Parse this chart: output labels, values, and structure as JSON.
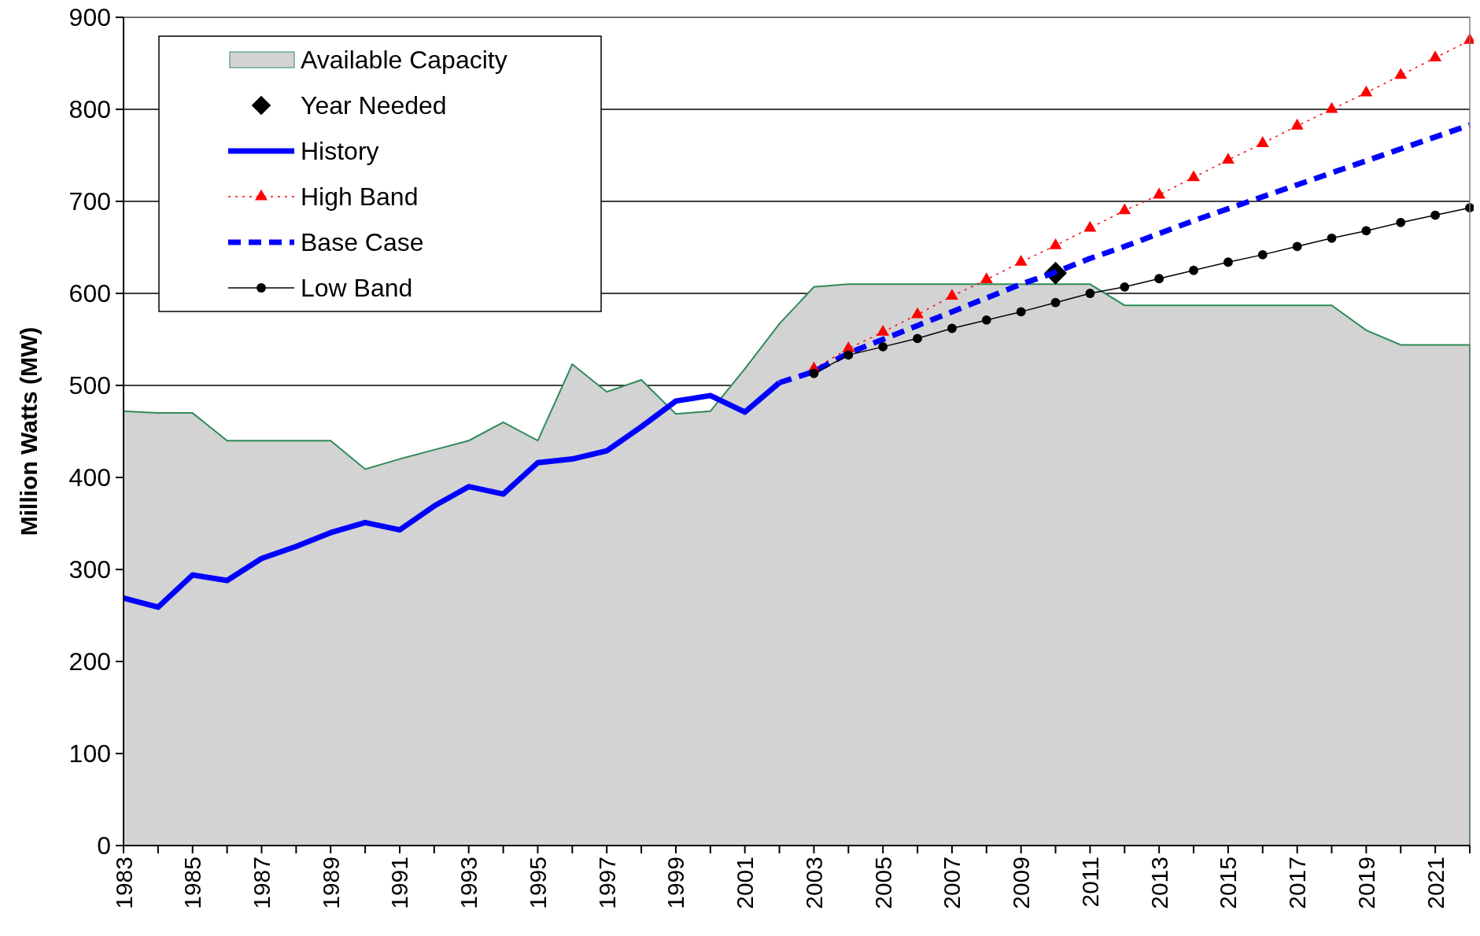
{
  "chart_data": {
    "type": "line",
    "ylabel": "Million Watts (MW)",
    "xlim": [
      1983,
      2022
    ],
    "ylim": [
      0,
      900
    ],
    "xticks": [
      1983,
      1985,
      1987,
      1989,
      1991,
      1993,
      1995,
      1997,
      1999,
      2001,
      2003,
      2005,
      2007,
      2009,
      2011,
      2013,
      2015,
      2017,
      2019,
      2021
    ],
    "yticks": [
      0,
      100,
      200,
      300,
      400,
      500,
      600,
      700,
      800,
      900
    ],
    "grid": "y",
    "legend": "top left",
    "series": [
      {
        "name": "Available Capacity",
        "type": "area",
        "color": "#d3d3d3",
        "x": [
          1983,
          1984,
          1985,
          1986,
          1987,
          1988,
          1989,
          1990,
          1991,
          1992,
          1993,
          1994,
          1995,
          1996,
          1997,
          1998,
          1999,
          2000,
          2001,
          2002,
          2003,
          2004,
          2005,
          2006,
          2007,
          2008,
          2009,
          2010,
          2011,
          2012,
          2013,
          2014,
          2015,
          2016,
          2017,
          2018,
          2019,
          2020,
          2021,
          2022
        ],
        "values": [
          472,
          470,
          470,
          440,
          440,
          440,
          440,
          409,
          420,
          430,
          440,
          460,
          440,
          523,
          493,
          506,
          469,
          472,
          518,
          567,
          607,
          610,
          610,
          610,
          610,
          610,
          610,
          610,
          610,
          587,
          587,
          587,
          587,
          587,
          587,
          587,
          560,
          544,
          544,
          544
        ]
      },
      {
        "name": "Year Needed",
        "type": "scatter",
        "color": "#000000",
        "marker": "diamond",
        "x": [
          2010
        ],
        "values": [
          622
        ]
      },
      {
        "name": "History",
        "color": "#0000ff",
        "line_style": "solid",
        "marker": "none",
        "x": [
          1983,
          1984,
          1985,
          1986,
          1987,
          1988,
          1989,
          1990,
          1991,
          1992,
          1993,
          1994,
          1995,
          1996,
          1997,
          1998,
          1999,
          2000,
          2001,
          2002
        ],
        "values": [
          269,
          259,
          294,
          288,
          312,
          325,
          340,
          351,
          343,
          369,
          390,
          382,
          416,
          420,
          429,
          455,
          483,
          489,
          471,
          503
        ]
      },
      {
        "name": "High Band",
        "color": "#ff0000",
        "line_style": "dotted",
        "marker": "triangle",
        "x": [
          2003,
          2004,
          2005,
          2006,
          2007,
          2008,
          2009,
          2010,
          2011,
          2012,
          2013,
          2014,
          2015,
          2016,
          2017,
          2018,
          2019,
          2020,
          2021,
          2022
        ],
        "values": [
          518,
          540,
          558,
          577,
          597,
          615,
          634,
          652,
          671,
          690,
          707,
          726,
          745,
          763,
          782,
          800,
          818,
          837,
          856,
          875
        ]
      },
      {
        "name": "Base Case",
        "color": "#0000ff",
        "line_style": "dashed",
        "marker": "none",
        "x": [
          2002,
          2003,
          2004,
          2005,
          2006,
          2007,
          2008,
          2009,
          2010,
          2011,
          2012,
          2013,
          2014,
          2015,
          2016,
          2017,
          2018,
          2019,
          2020,
          2021,
          2022
        ],
        "values": [
          503,
          515,
          535,
          550,
          565,
          580,
          595,
          610,
          623,
          638,
          651,
          665,
          679,
          692,
          705,
          718,
          731,
          744,
          757,
          770,
          783
        ]
      },
      {
        "name": "Low Band",
        "color": "#000000",
        "line_style": "solid",
        "marker": "circle",
        "x": [
          2003,
          2004,
          2005,
          2006,
          2007,
          2008,
          2009,
          2010,
          2011,
          2012,
          2013,
          2014,
          2015,
          2016,
          2017,
          2018,
          2019,
          2020,
          2021,
          2022
        ],
        "values": [
          513,
          533,
          542,
          551,
          562,
          571,
          580,
          590,
          600,
          607,
          616,
          625,
          634,
          642,
          651,
          660,
          668,
          677,
          685,
          693
        ]
      }
    ]
  }
}
